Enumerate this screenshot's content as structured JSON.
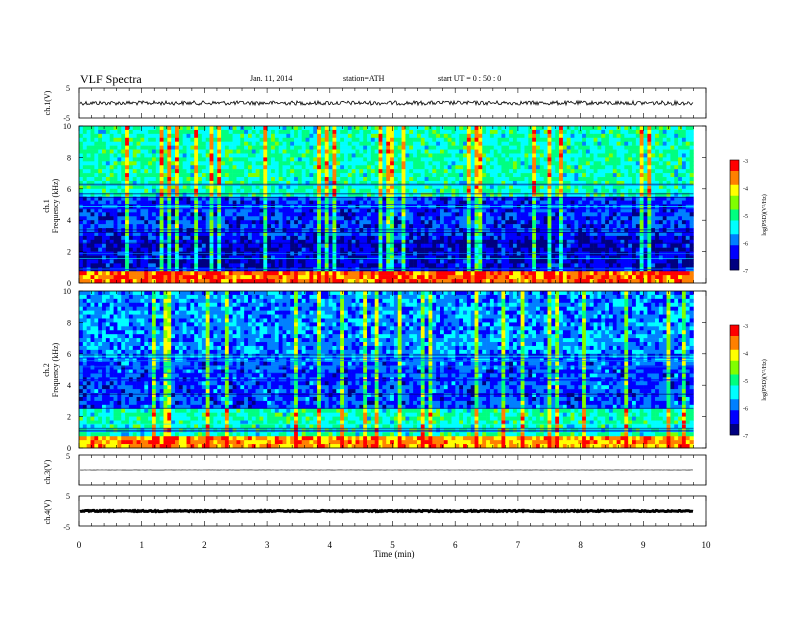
{
  "header": {
    "title": "VLF  Spectra",
    "date": "Jan. 11, 2014",
    "station": "station=ATH",
    "start": "start  UT  =   0 : 50 : 0"
  },
  "chart_data": [
    {
      "type": "line",
      "ylabel": "ch.1(V)",
      "ylim": [
        -5,
        5
      ],
      "yticks": [
        "5",
        "-5"
      ],
      "description_level": 0,
      "noise_amplitude": 0.7
    },
    {
      "type": "heatmap",
      "ylabel": "ch.1\nFrequency (kHz)",
      "ylabel_lines": [
        "ch.1",
        "Frequency (kHz)"
      ],
      "ylim": [
        0,
        10
      ],
      "yticks": [
        "0",
        "2",
        "4",
        "6",
        "8",
        "10"
      ],
      "colorbar": {
        "label": "log(PSD)(V²/Hz)",
        "range": [
          -7,
          -3
        ],
        "ticks": [
          "-3",
          "-4",
          "-5",
          "-6",
          "-7"
        ]
      }
    },
    {
      "type": "heatmap",
      "ylabel": "ch.2\nFrequency (kHz)",
      "ylabel_lines": [
        "ch.2",
        "Frequency (kHz)"
      ],
      "ylim": [
        0,
        10
      ],
      "yticks": [
        "0",
        "2",
        "4",
        "6",
        "8",
        "10"
      ],
      "colorbar": {
        "label": "log(PSD)(V²/Hz)",
        "range": [
          -7,
          -3
        ],
        "ticks": [
          "-3",
          "-4",
          "-5",
          "-6",
          "-7"
        ]
      }
    },
    {
      "type": "line",
      "ylabel": "ch.3(V)",
      "ylim": [
        -5,
        5
      ],
      "yticks": [
        "5",
        "-5"
      ],
      "level": 0,
      "noise_amplitude": 0.05
    },
    {
      "type": "line",
      "ylabel": "ch.4(V)",
      "ylim": [
        -5,
        5
      ],
      "yticks": [
        "5",
        "-5"
      ],
      "level": 0,
      "noise_amplitude": 0.2
    }
  ],
  "xaxis": {
    "label": "Time  (min)",
    "xlim": [
      0,
      10
    ],
    "ticks": [
      "0",
      "1",
      "2",
      "3",
      "4",
      "5",
      "6",
      "7",
      "8",
      "9",
      "10"
    ],
    "data_end": 9.8
  },
  "colors": {
    "colormap": [
      "#000080",
      "#0000ff",
      "#0080ff",
      "#00ffff",
      "#00ff80",
      "#80ff00",
      "#ffff00",
      "#ff8000",
      "#ff0000",
      "#ffffff"
    ]
  }
}
